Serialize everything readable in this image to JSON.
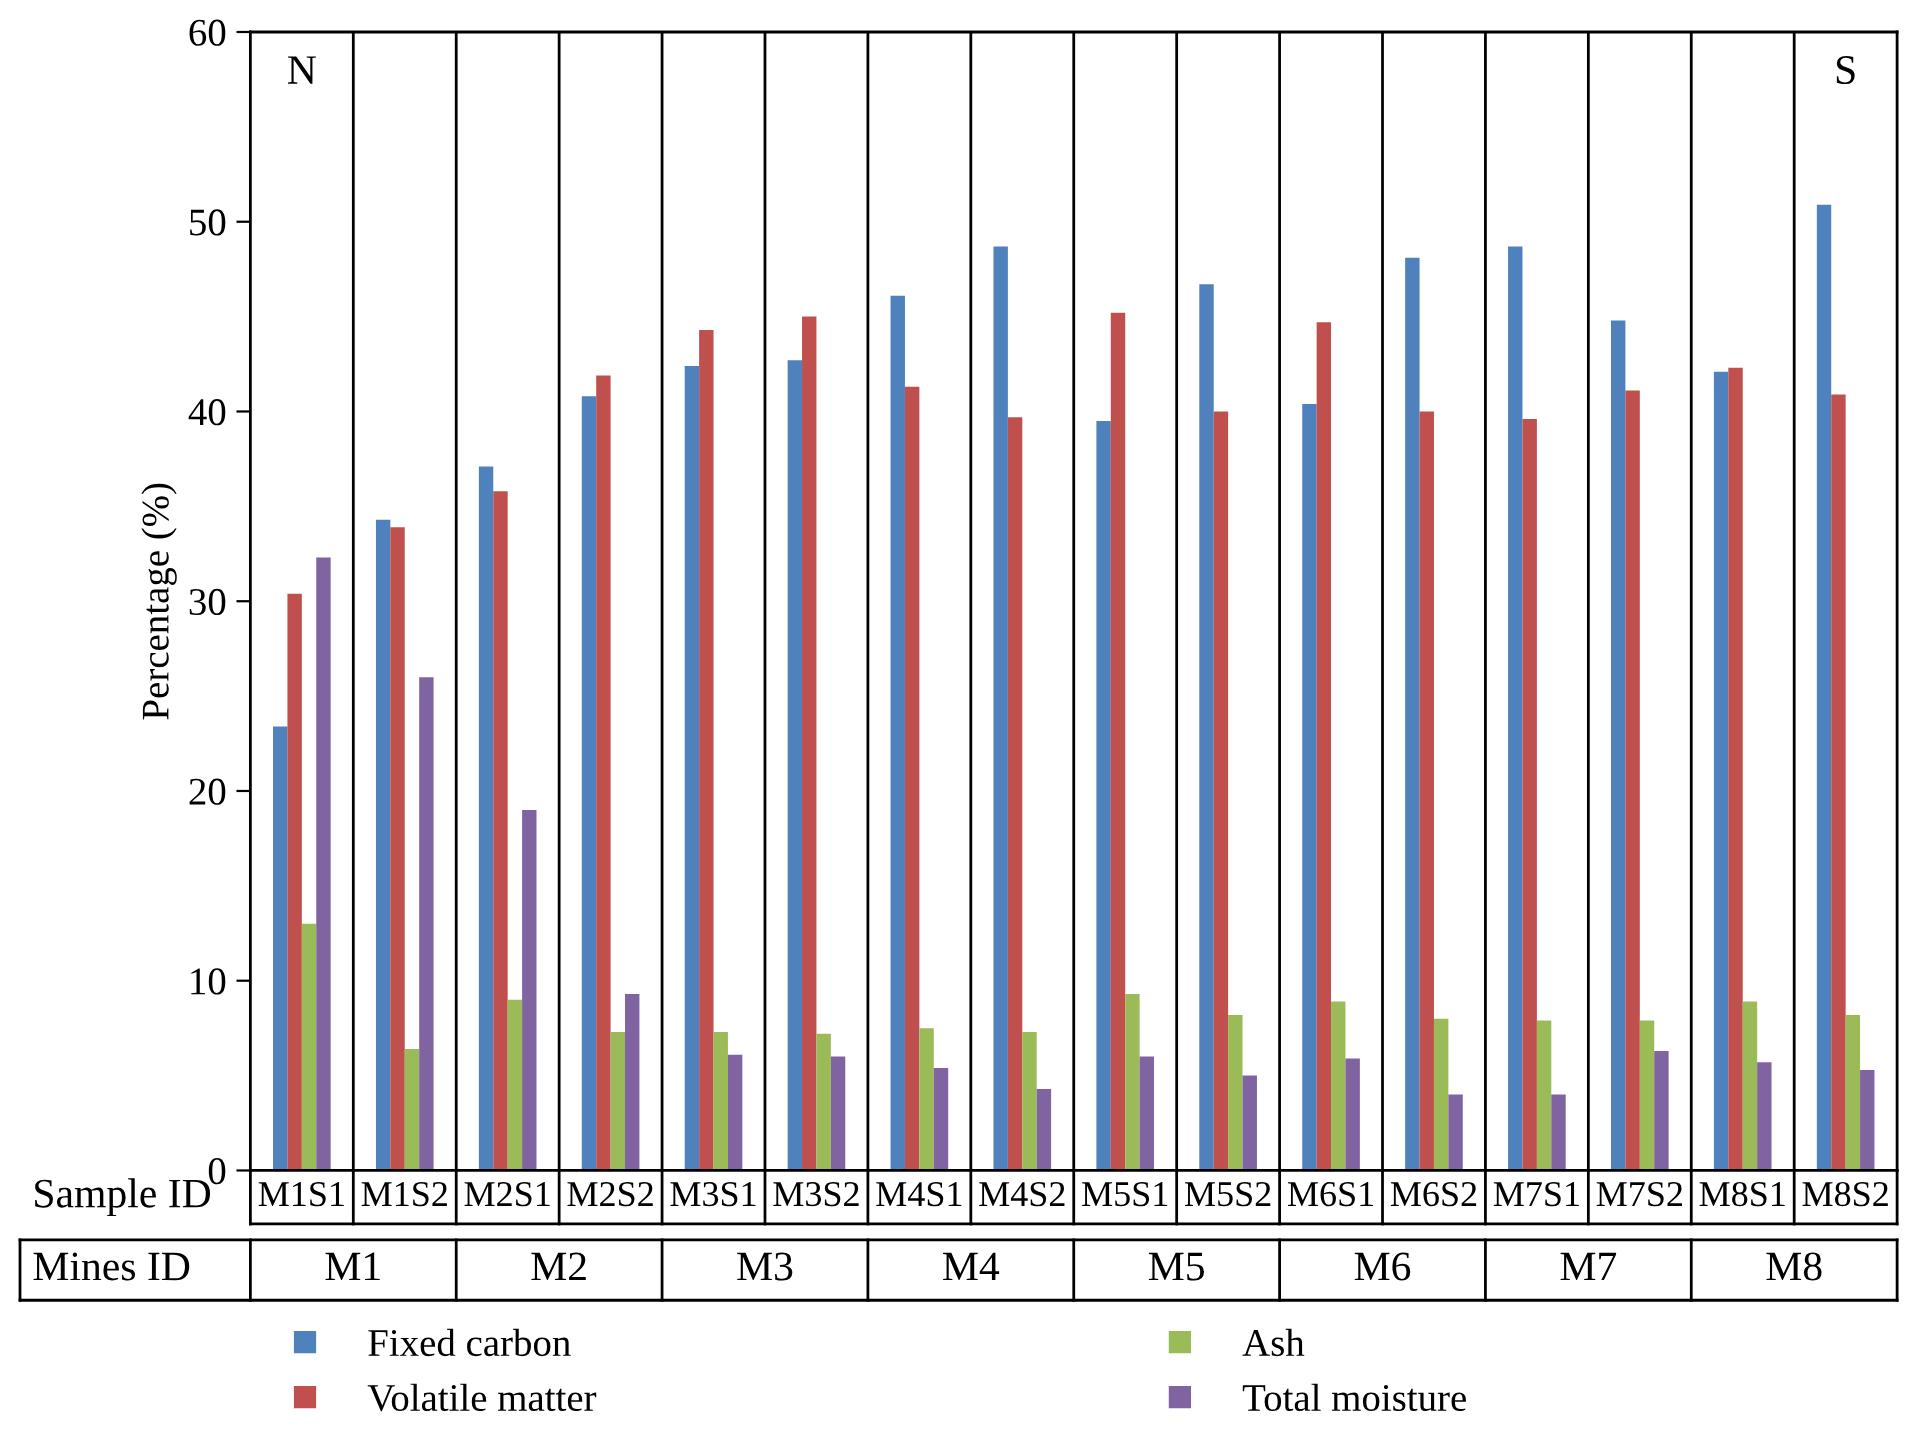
{
  "chart_data": {
    "type": "bar",
    "ylabel": "Percentage (%)",
    "categories": [
      "M1S1",
      "M1S2",
      "M2S1",
      "M2S2",
      "M3S1",
      "M3S2",
      "M4S1",
      "M4S2",
      "M5S1",
      "M5S2",
      "M6S1",
      "M6S2",
      "M7S1",
      "M7S2",
      "M8S1",
      "M8S2"
    ],
    "series": [
      {
        "name": "Fixed carbon",
        "color": "#4f81bd",
        "values": [
          23.4,
          34.3,
          37.1,
          40.8,
          42.4,
          42.7,
          46.1,
          48.7,
          39.5,
          46.7,
          40.4,
          48.1,
          48.7,
          44.8,
          42.1,
          50.9
        ]
      },
      {
        "name": "Volatile matter",
        "color": "#c0504d",
        "values": [
          30.4,
          33.9,
          35.8,
          41.9,
          44.3,
          45.0,
          41.3,
          39.7,
          45.2,
          40.0,
          44.7,
          40.0,
          39.6,
          41.1,
          42.3,
          40.9
        ]
      },
      {
        "name": "Ash",
        "color": "#9bbb59",
        "values": [
          13.0,
          6.4,
          9.0,
          7.3,
          7.3,
          7.2,
          7.5,
          7.3,
          9.3,
          8.2,
          8.9,
          8.0,
          7.9,
          7.9,
          8.9,
          8.2
        ]
      },
      {
        "name": "Total moisture",
        "color": "#8064a2",
        "values": [
          32.3,
          26.0,
          19.0,
          9.3,
          6.1,
          6.0,
          5.4,
          4.3,
          6.0,
          5.0,
          5.9,
          4.0,
          4.0,
          6.3,
          5.7,
          5.3
        ]
      }
    ],
    "ylim": [
      0,
      60
    ],
    "yticks": [
      0,
      10,
      20,
      30,
      40,
      50,
      60
    ],
    "grid": "x",
    "legend": "bottom",
    "annotations": [
      "N",
      "S",
      "Sample ID",
      "Mines ID",
      "M1",
      "M2",
      "M3",
      "M4",
      "M5",
      "M6",
      "M7",
      "M8"
    ]
  }
}
